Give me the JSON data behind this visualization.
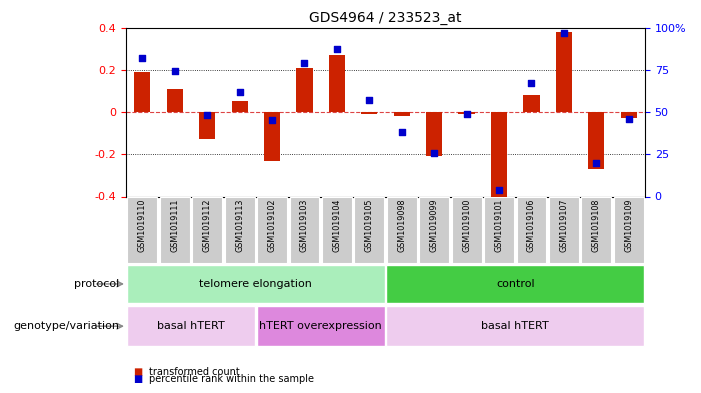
{
  "title": "GDS4964 / 233523_at",
  "samples": [
    "GSM1019110",
    "GSM1019111",
    "GSM1019112",
    "GSM1019113",
    "GSM1019102",
    "GSM1019103",
    "GSM1019104",
    "GSM1019105",
    "GSM1019098",
    "GSM1019099",
    "GSM1019100",
    "GSM1019101",
    "GSM1019106",
    "GSM1019107",
    "GSM1019108",
    "GSM1019109"
  ],
  "bar_values": [
    0.19,
    0.11,
    -0.13,
    0.05,
    -0.23,
    0.21,
    0.27,
    -0.01,
    -0.02,
    -0.21,
    -0.01,
    -0.4,
    0.08,
    0.38,
    -0.27,
    -0.03
  ],
  "dot_values": [
    82,
    74,
    48,
    62,
    45,
    79,
    87,
    57,
    38,
    26,
    49,
    4,
    67,
    97,
    20,
    46
  ],
  "ylim": [
    -0.4,
    0.4
  ],
  "y2lim": [
    0,
    100
  ],
  "yticks": [
    -0.4,
    -0.2,
    0.0,
    0.2,
    0.4
  ],
  "y2ticks": [
    0,
    25,
    50,
    75,
    100
  ],
  "bar_color": "#CC2200",
  "dot_color": "#0000CC",
  "hline_color": "#DD4444",
  "dotline_color": "black",
  "bar_width": 0.5,
  "protocol_labels": [
    {
      "text": "telomere elongation",
      "start": 0,
      "end": 7,
      "color": "#AAEEBB"
    },
    {
      "text": "control",
      "start": 8,
      "end": 15,
      "color": "#44CC44"
    }
  ],
  "genotype_labels": [
    {
      "text": "basal hTERT",
      "start": 0,
      "end": 3,
      "color": "#EECCEE"
    },
    {
      "text": "hTERT overexpression",
      "start": 4,
      "end": 7,
      "color": "#DD88DD"
    },
    {
      "text": "basal hTERT",
      "start": 8,
      "end": 15,
      "color": "#EECCEE"
    }
  ],
  "protocol_row_label": "protocol",
  "genotype_row_label": "genotype/variation",
  "legend_bar_label": "transformed count",
  "legend_dot_label": "percentile rank within the sample",
  "bg_color": "#FFFFFF",
  "tick_bg_color": "#CCCCCC"
}
